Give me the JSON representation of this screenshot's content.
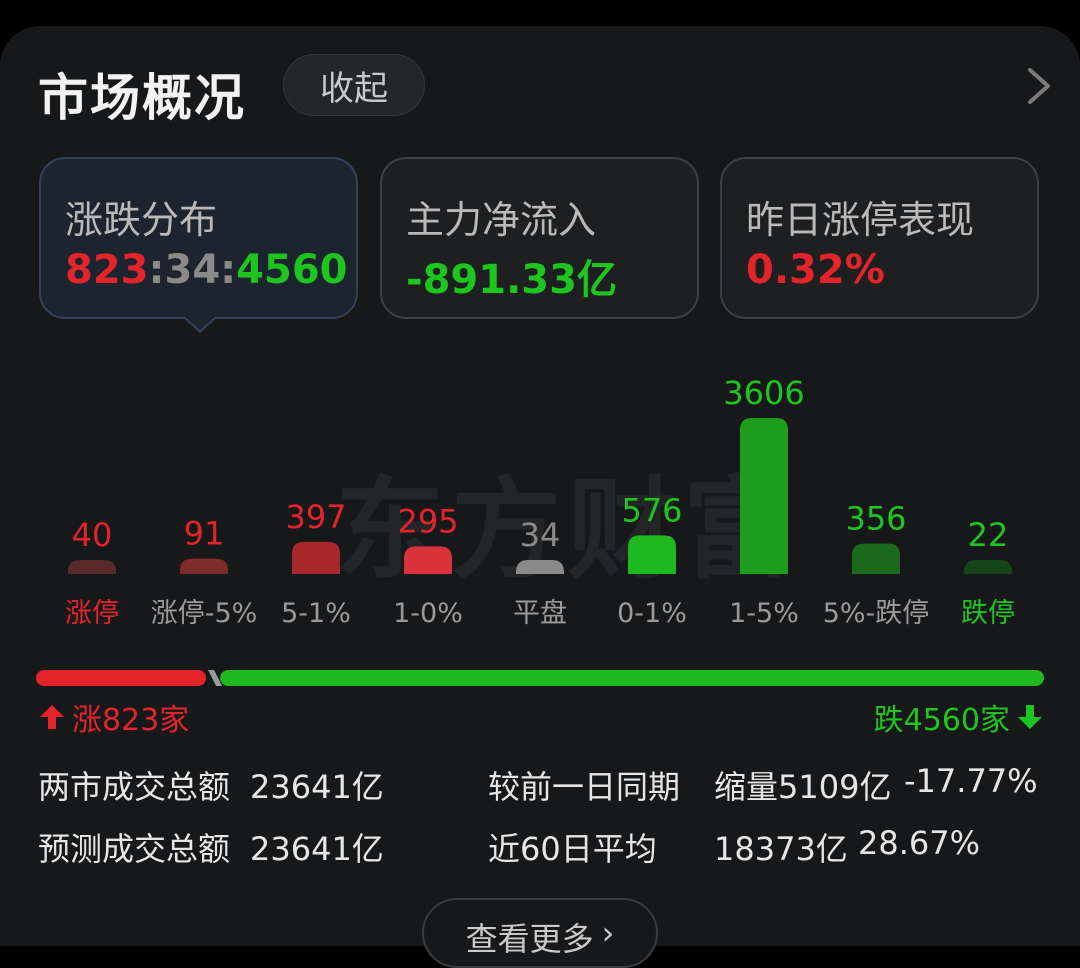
{
  "header": {
    "title": "市场概况",
    "collapse_label": "收起"
  },
  "stats": [
    {
      "label": "涨跌分布",
      "value_up": "823",
      "sep1": ":",
      "value_flat": "34",
      "sep2": ":",
      "value_down": "4560"
    },
    {
      "label": "主力净流入",
      "value": "-891.33亿"
    },
    {
      "label": "昨日涨停表现",
      "value": "0.32%"
    }
  ],
  "watermark": "东方财富",
  "chart_data": {
    "type": "bar",
    "categories": [
      "涨停",
      "涨停-5%",
      "5-1%",
      "1-0%",
      "平盘",
      "0-1%",
      "1-5%",
      "5%-跌停",
      "跌停"
    ],
    "values": [
      40,
      91,
      397,
      295,
      34,
      576,
      3606,
      356,
      22
    ],
    "colors": [
      "#5a2a2a",
      "#7d2b2b",
      "#a8282c",
      "#d8323a",
      "#8a8a8a",
      "#1fb81f",
      "#1e9e1e",
      "#1c6a1c",
      "#17451a"
    ],
    "value_colors": [
      "#e3242b",
      "#e3242b",
      "#e3242b",
      "#e3242b",
      "#8a8a8a",
      "#1fc51f",
      "#1fc51f",
      "#1fc51f",
      "#1fc51f"
    ],
    "label_colors": [
      "#e3242b",
      "#9a9a9a",
      "#9a9a9a",
      "#9a9a9a",
      "#9a9a9a",
      "#9a9a9a",
      "#9a9a9a",
      "#9a9a9a",
      "#1fc51f"
    ]
  },
  "breadth": {
    "up_label": "涨823家",
    "down_label": "跌4560家",
    "up": 823,
    "flat": 34,
    "down": 4560
  },
  "turnover": {
    "total_label": "两市成交总额",
    "total_value": "23641亿",
    "forecast_label": "预测成交总额",
    "forecast_value": "23641亿",
    "compare_label": "较前一日同期",
    "compare_value": "缩量5109亿",
    "compare_pct": "-17.77%",
    "avg_label": "近60日平均",
    "avg_value": "18373亿",
    "avg_pct": "28.67%"
  },
  "more_label": "查看更多",
  "colors": {
    "red": "#e3242b",
    "green": "#1fc51f",
    "background": "#16181a"
  }
}
